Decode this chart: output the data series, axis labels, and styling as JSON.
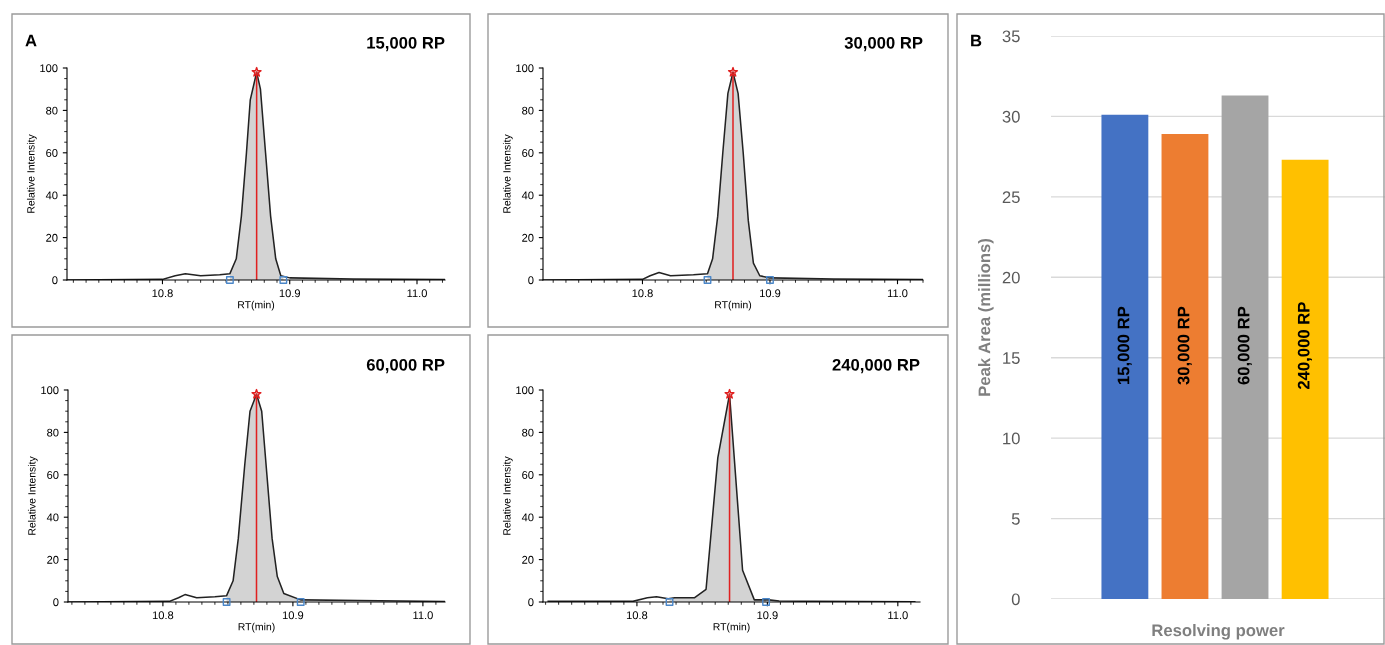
{
  "chart_data": [
    {
      "type": "line",
      "title": "15,000 RP",
      "xlabel": "RT(min)",
      "ylabel": "Relative Intensity",
      "annotations": [
        "A"
      ],
      "xlim": [
        10.725,
        11.022
      ],
      "ylim": [
        0,
        100
      ],
      "xticks": [
        {
          "value": 10.8,
          "label": "10.8"
        },
        {
          "value": 10.9,
          "label": "10.9"
        },
        {
          "value": 11.0,
          "label": "11.0"
        }
      ],
      "yticks": [
        0,
        20,
        40,
        60,
        80,
        100
      ],
      "grid": false,
      "legend": false,
      "series": [
        {
          "type": "area",
          "color": "#d3d3d3",
          "x": [
            10.853,
            10.858,
            10.862,
            10.866,
            10.869,
            10.874,
            10.877,
            10.881,
            10.885,
            10.889,
            10.893,
            10.895
          ],
          "values": [
            3,
            10,
            30,
            60,
            85,
            98,
            90,
            60,
            30,
            10,
            2,
            1.5
          ]
        },
        {
          "type": "line",
          "color": "#222222",
          "x": [
            10.725,
            10.8,
            10.81,
            10.818,
            10.83,
            10.845,
            10.853,
            10.858,
            10.862,
            10.866,
            10.869,
            10.874,
            10.877,
            10.881,
            10.885,
            10.889,
            10.893,
            10.9,
            10.95,
            11.022
          ],
          "values": [
            0,
            0.3,
            2,
            3,
            2,
            2.5,
            3,
            10,
            30,
            60,
            85,
            98,
            90,
            60,
            30,
            10,
            2,
            1,
            0.5,
            0.2
          ]
        },
        {
          "type": "line",
          "color": "#e02020",
          "x": [
            10.874,
            10.874
          ],
          "values": [
            0,
            98
          ]
        },
        {
          "type": "scatter",
          "marker": "star",
          "color": "#e02020",
          "x": [
            10.874
          ],
          "values": [
            98
          ]
        },
        {
          "type": "scatter",
          "marker": "square",
          "color": "#4a86c8",
          "x": [
            10.853,
            10.895
          ],
          "values": [
            0,
            0
          ]
        }
      ]
    },
    {
      "type": "line",
      "title": "30,000 RP",
      "xlabel": "RT(min)",
      "ylabel": "Relative Intensity",
      "xlim": [
        10.722,
        11.02
      ],
      "ylim": [
        0,
        100
      ],
      "xticks": [
        {
          "value": 10.8,
          "label": "10.8"
        },
        {
          "value": 10.9,
          "label": "10.9"
        },
        {
          "value": 11.0,
          "label": "11.0"
        }
      ],
      "yticks": [
        0,
        20,
        40,
        60,
        80,
        100
      ],
      "grid": false,
      "legend": false,
      "series": [
        {
          "type": "area",
          "color": "#d3d3d3",
          "x": [
            10.851,
            10.855,
            10.859,
            10.863,
            10.867,
            10.871,
            10.875,
            10.879,
            10.883,
            10.887,
            10.892,
            10.9
          ],
          "values": [
            3,
            10,
            30,
            60,
            88,
            98,
            88,
            60,
            28,
            8,
            2,
            1
          ]
        },
        {
          "type": "line",
          "color": "#222222",
          "x": [
            10.722,
            10.8,
            10.806,
            10.813,
            10.822,
            10.84,
            10.851,
            10.855,
            10.859,
            10.863,
            10.867,
            10.871,
            10.875,
            10.879,
            10.883,
            10.887,
            10.892,
            10.9,
            10.95,
            11.02
          ],
          "values": [
            0,
            0.3,
            2,
            3.5,
            2,
            2.5,
            3,
            10,
            30,
            60,
            88,
            98,
            88,
            60,
            28,
            8,
            2,
            1,
            0.5,
            0.2
          ]
        },
        {
          "type": "line",
          "color": "#e02020",
          "x": [
            10.871,
            10.871
          ],
          "values": [
            0,
            98
          ]
        },
        {
          "type": "scatter",
          "marker": "star",
          "color": "#e02020",
          "x": [
            10.871
          ],
          "values": [
            98
          ]
        },
        {
          "type": "scatter",
          "marker": "square",
          "color": "#4a86c8",
          "x": [
            10.851,
            10.9
          ],
          "values": [
            0,
            0
          ]
        }
      ]
    },
    {
      "type": "line",
      "title": "60,000 RP",
      "xlabel": "RT(min)",
      "ylabel": "Relative Intensity",
      "xlim": [
        10.727,
        11.017
      ],
      "ylim": [
        0,
        100
      ],
      "xticks": [
        {
          "value": 10.8,
          "label": "10.8"
        },
        {
          "value": 10.9,
          "label": "10.9"
        },
        {
          "value": 11.0,
          "label": "11.0"
        }
      ],
      "yticks": [
        0,
        20,
        40,
        60,
        80,
        100
      ],
      "grid": false,
      "legend": false,
      "series": [
        {
          "type": "area",
          "color": "#d3d3d3",
          "x": [
            10.849,
            10.854,
            10.858,
            10.863,
            10.867,
            10.872,
            10.876,
            10.88,
            10.884,
            10.888,
            10.893,
            10.906
          ],
          "values": [
            3,
            10,
            30,
            65,
            90,
            98,
            90,
            60,
            30,
            12,
            4,
            1
          ]
        },
        {
          "type": "line",
          "color": "#222222",
          "x": [
            10.727,
            10.805,
            10.812,
            10.817,
            10.826,
            10.84,
            10.849,
            10.854,
            10.858,
            10.863,
            10.867,
            10.872,
            10.876,
            10.88,
            10.884,
            10.888,
            10.893,
            10.906,
            10.95,
            11.017
          ],
          "values": [
            0,
            0.3,
            2,
            3.5,
            2,
            2.5,
            3,
            10,
            30,
            65,
            90,
            98,
            90,
            60,
            30,
            12,
            4,
            1,
            0.7,
            0.2
          ]
        },
        {
          "type": "line",
          "color": "#e02020",
          "x": [
            10.872,
            10.872
          ],
          "values": [
            0,
            98
          ]
        },
        {
          "type": "scatter",
          "marker": "star",
          "color": "#e02020",
          "x": [
            10.872
          ],
          "values": [
            98
          ]
        },
        {
          "type": "scatter",
          "marker": "square",
          "color": "#4a86c8",
          "x": [
            10.849,
            10.906
          ],
          "values": [
            0,
            0
          ]
        }
      ]
    },
    {
      "type": "line",
      "title": "240,000 RP",
      "xlabel": "RT(min)",
      "ylabel": "Relative Intensity",
      "xlim": [
        10.728,
        11.017
      ],
      "ylim": [
        0,
        100
      ],
      "xticks": [
        {
          "value": 10.8,
          "label": "10.8"
        },
        {
          "value": 10.9,
          "label": "10.9"
        },
        {
          "value": 11.0,
          "label": "11.0"
        }
      ],
      "yticks": [
        0,
        20,
        40,
        60,
        80,
        100
      ],
      "grid": false,
      "legend": false,
      "series": [
        {
          "type": "area",
          "color": "#d3d3d3",
          "x": [
            10.825,
            10.829,
            10.844,
            10.853,
            10.862,
            10.871,
            10.881,
            10.89,
            10.899
          ],
          "values": [
            1.7,
            2,
            2,
            6,
            68,
            98,
            15,
            1,
            1
          ]
        },
        {
          "type": "line",
          "color": "#222222",
          "x": [
            10.732,
            10.797,
            10.808,
            10.815,
            10.824,
            10.829,
            10.844,
            10.853,
            10.862,
            10.871,
            10.881,
            10.89,
            10.901,
            10.909,
            10.934,
            11.013
          ],
          "values": [
            0.3,
            0.3,
            2,
            2.5,
            1.5,
            2,
            2,
            6,
            68,
            98,
            15,
            1,
            1,
            0.5,
            0.3,
            0.1
          ]
        },
        {
          "type": "line",
          "color": "#e02020",
          "x": [
            10.871,
            10.871
          ],
          "values": [
            0,
            98
          ]
        },
        {
          "type": "scatter",
          "marker": "star",
          "color": "#e02020",
          "x": [
            10.871
          ],
          "values": [
            98
          ]
        },
        {
          "type": "scatter",
          "marker": "square",
          "color": "#4a86c8",
          "x": [
            10.825,
            10.899
          ],
          "values": [
            0,
            0
          ]
        }
      ]
    },
    {
      "type": "bar",
      "xlabel": "Resolving power",
      "ylabel": "Peak Area (millions)",
      "annotations": [
        "B"
      ],
      "categories": [
        "15,000 RP",
        "30,000 RP",
        "60,000 RP",
        "240,000 RP"
      ],
      "values": [
        30.1,
        28.9,
        31.3,
        27.3
      ],
      "colors": [
        "#4472c4",
        "#ed7d31",
        "#a5a5a5",
        "#ffc000"
      ],
      "ylim": [
        0,
        35
      ],
      "yticks": [
        0,
        5,
        10,
        15,
        20,
        25,
        30,
        35
      ],
      "grid": "y",
      "legend": false,
      "tick_labels": "y"
    }
  ]
}
